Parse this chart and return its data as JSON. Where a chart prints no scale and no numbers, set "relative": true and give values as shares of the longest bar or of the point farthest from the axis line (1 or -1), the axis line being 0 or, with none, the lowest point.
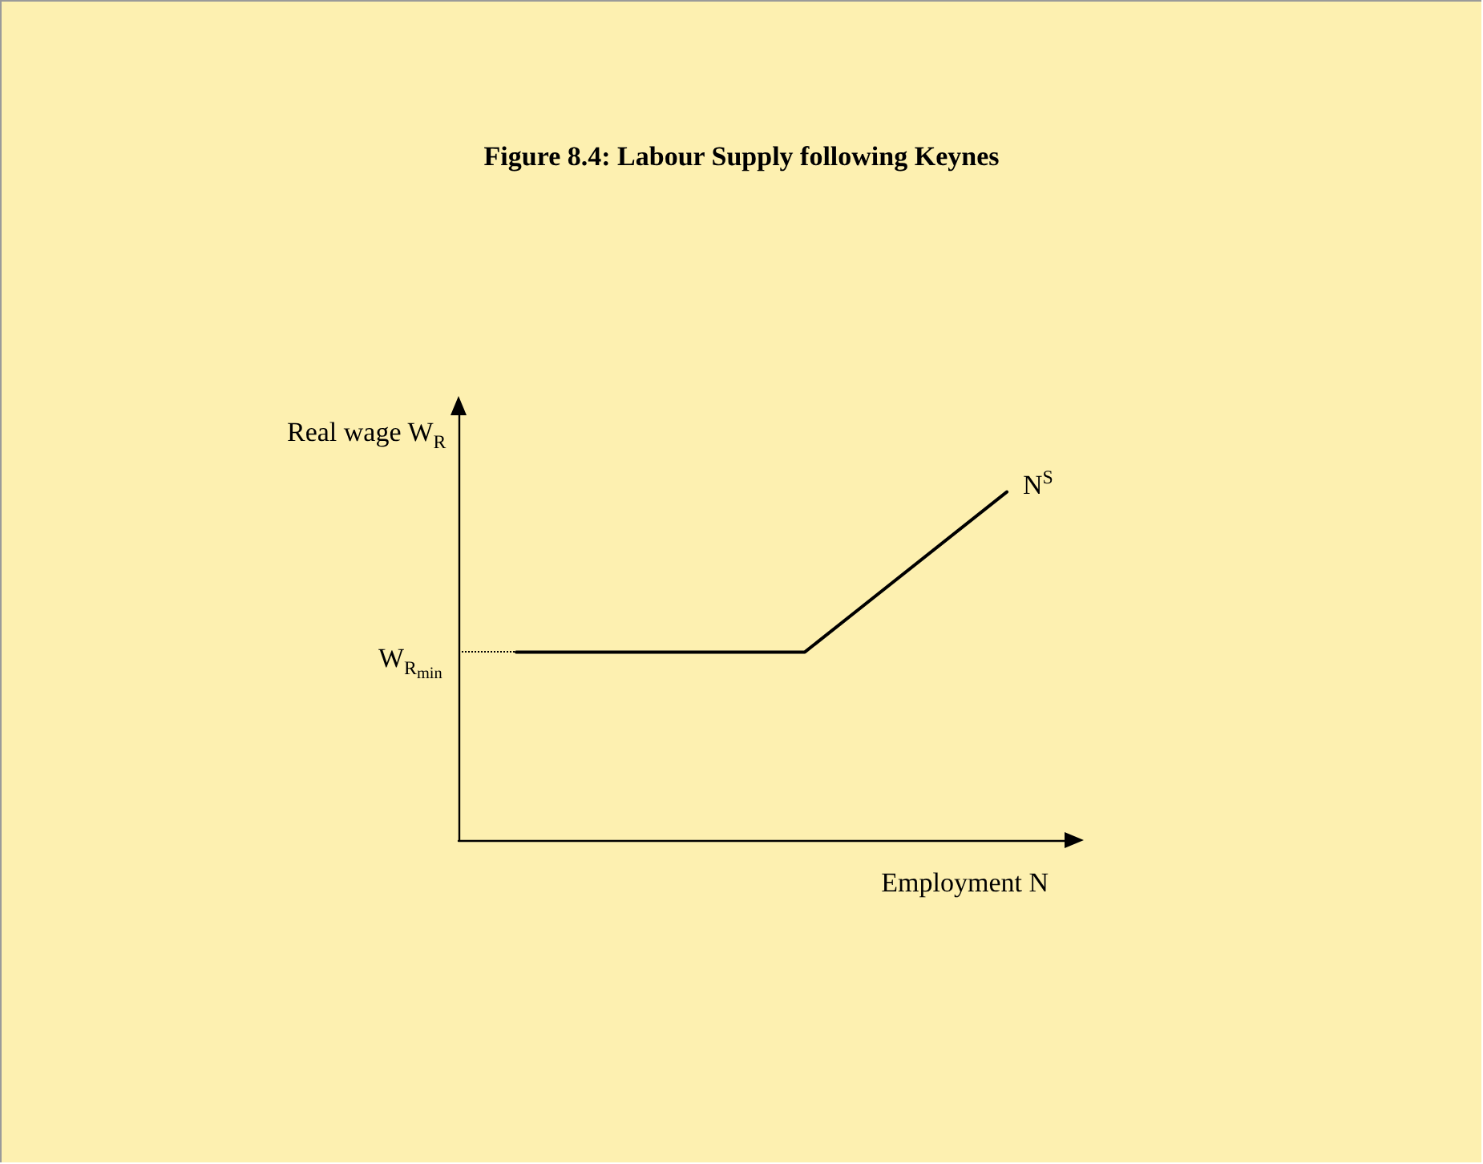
{
  "chart_data": {
    "type": "line",
    "title": "Figure 8.4: Labour Supply following Keynes",
    "xlabel": "Employment N",
    "ylabel": "Real wage W$_{R}$",
    "relative": true,
    "categories": [
      null,
      null,
      null,
      null,
      null,
      null,
      null,
      null,
      null,
      null,
      null,
      null,
      null,
      null,
      null,
      null,
      null,
      null,
      null,
      null,
      null,
      null
    ],
    "series": [
      {
        "name": "N$^{S}$",
        "color": "#000000",
        "values": [
          null,
          null,
          0.54,
          null,
          null,
          null,
          null,
          null,
          null,
          null,
          null,
          null,
          0.54,
          null,
          null,
          null,
          null,
          null,
          null,
          1,
          null,
          null
        ]
      }
    ],
    "ref_lines": [
      {
        "axis": "y",
        "value": 0.54,
        "label": "W$_{R}$$_{min}$",
        "color": "#000000",
        "line_style": "dotted"
      }
    ],
    "marker": "none",
    "line_style": "solid",
    "legend": false,
    "grid": false
  }
}
